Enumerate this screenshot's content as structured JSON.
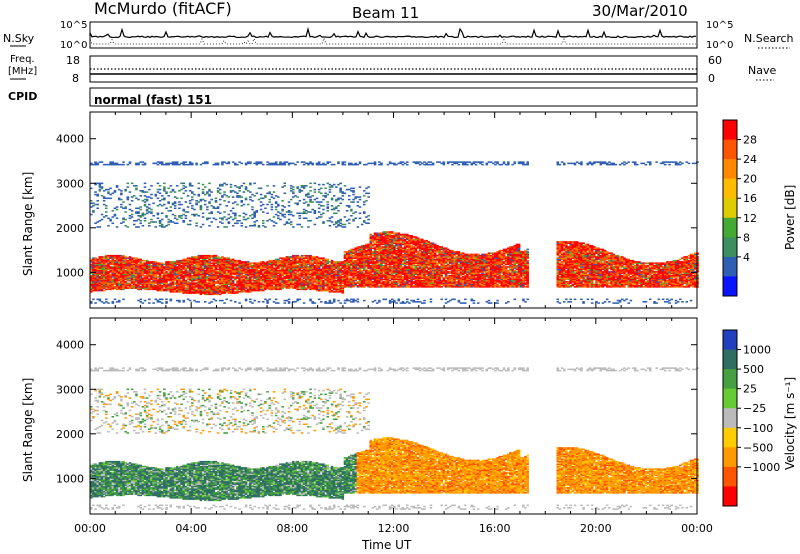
{
  "header": {
    "station": "McMurdo (fitACF)",
    "beam": "Beam 11",
    "date": "30/Mar/2010"
  },
  "summary": {
    "nsky_label": "N.Sky",
    "nsearch_label": "N.Search",
    "freq_label_line1": "Freq.",
    "freq_label_line2": "[MHz]",
    "nave_label": "Nave",
    "cpid_label": "CPID",
    "cpid_value": "normal (fast) 151",
    "noise_ticks_left": [
      "10^5",
      "10^0"
    ],
    "noise_ticks_right": [
      "10^5",
      "10^0"
    ],
    "freq_ticks": [
      "18",
      "8"
    ],
    "nave_ticks": [
      "60",
      "0"
    ]
  },
  "chart_data": [
    {
      "type": "heatmap",
      "name": "power",
      "ylabel": "Slant Range [km]",
      "ylim": [
        200,
        4600
      ],
      "yticks": [
        1000,
        2000,
        3000,
        4000
      ],
      "xlim": [
        0,
        24
      ],
      "colorbar": {
        "label": "Power [dB]",
        "ticks": [
          "28",
          "24",
          "20",
          "16",
          "12",
          "8",
          "4"
        ],
        "colors": [
          "#ff0000",
          "#ff5500",
          "#ff8800",
          "#ffbb00",
          "#ddcc00",
          "#44aa33",
          "#3d8f5f",
          "#2f5fb4",
          "#0b14ff"
        ]
      },
      "regions": [
        {
          "band": "high-power F-region",
          "x": [
            0,
            17.3
          ],
          "range": [
            600,
            1350
          ],
          "level_db": 28
        },
        {
          "band": "F-region (post-gap)",
          "x": [
            18.4,
            24
          ],
          "range": [
            650,
            1500
          ],
          "level_db": 24
        },
        {
          "band": "upper scatter",
          "x": [
            0,
            11
          ],
          "range": [
            2000,
            3000
          ],
          "level_db": 8
        }
      ]
    },
    {
      "type": "heatmap",
      "name": "velocity",
      "ylabel": "Slant Range [km]",
      "xlabel": "Time UT",
      "ylim": [
        200,
        4600
      ],
      "yticks": [
        1000,
        2000,
        3000,
        4000
      ],
      "xlim": [
        0,
        24
      ],
      "xticks": [
        "00:00",
        "04:00",
        "08:00",
        "12:00",
        "16:00",
        "20:00",
        "00:00"
      ],
      "colorbar": {
        "label": "Velocity [m s⁻¹]",
        "ticks": [
          "1000",
          "500",
          "25",
          "−25",
          "−100",
          "−500",
          "−1000"
        ],
        "colors": [
          "#2040c0",
          "#2e6e63",
          "#44a040",
          "#66cc33",
          "#bbbbbb",
          "#ffcc00",
          "#ff9900",
          "#ff5500",
          "#ff0000"
        ]
      },
      "regions": [
        {
          "band": "F-region toward",
          "x": [
            0,
            10.5
          ],
          "range": [
            550,
            1450
          ],
          "velocity_ms": 500
        },
        {
          "band": "F-region away",
          "x": [
            10.5,
            24
          ],
          "range": [
            650,
            1800
          ],
          "velocity_ms": -100
        }
      ]
    }
  ],
  "colors": {
    "axis": "#000000",
    "background": "#ffffff"
  }
}
